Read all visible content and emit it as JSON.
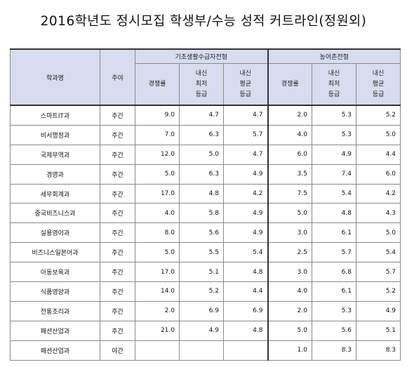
{
  "title": "2016학년도 정시모집 학생부/수능 성적 커트라인(정원외)",
  "header": {
    "dept": "학과명",
    "shift": "주야",
    "group_a": "기초생활수급자전형",
    "group_b": "농어촌전형",
    "sub": [
      "경쟁률",
      "내신\n최저\n등급",
      "내신\n평균\n등급",
      "경쟁률",
      "내신\n최저\n등급",
      "내신\n평균\n등급"
    ]
  },
  "rows": [
    {
      "dept": "스마트IT과",
      "shift": "주간",
      "v": [
        "9.0",
        "4.7",
        "4.7",
        "2.0",
        "5.3",
        "5.2"
      ]
    },
    {
      "dept": "비서행정과",
      "shift": "주간",
      "v": [
        "7.0",
        "6.3",
        "5.7",
        "4.0",
        "5.3",
        "5.0"
      ]
    },
    {
      "dept": "국제무역과",
      "shift": "주간",
      "v": [
        "12.0",
        "5.0",
        "4.7",
        "6.0",
        "4.9",
        "4.4"
      ]
    },
    {
      "dept": "경영과",
      "shift": "주간",
      "v": [
        "5.0",
        "6.3",
        "4.9",
        "3.5",
        "7.4",
        "6.0"
      ]
    },
    {
      "dept": "세무회계과",
      "shift": "주간",
      "v": [
        "17.0",
        "4.8",
        "4.2",
        "7.5",
        "5.4",
        "4.2"
      ]
    },
    {
      "dept": "중국비즈니스과",
      "shift": "주간",
      "v": [
        "4.0",
        "5.8",
        "4.9",
        "5.0",
        "4.8",
        "4.3"
      ]
    },
    {
      "dept": "실용영어과",
      "shift": "주간",
      "v": [
        "8.0",
        "5.6",
        "4.9",
        "3.0",
        "6.1",
        "5.0"
      ]
    },
    {
      "dept": "비즈니스일본어과",
      "shift": "주간",
      "v": [
        "5.0",
        "5.5",
        "5.4",
        "2.5",
        "5.7",
        "5.4"
      ]
    },
    {
      "dept": "아동보육과",
      "shift": "주간",
      "v": [
        "17.0",
        "5.1",
        "4.8",
        "3.0",
        "6.8",
        "5.7"
      ]
    },
    {
      "dept": "식품영양과",
      "shift": "주간",
      "v": [
        "14.0",
        "5.2",
        "4.4",
        "4.0",
        "6.1",
        "5.2"
      ]
    },
    {
      "dept": "전통조리과",
      "shift": "주간",
      "v": [
        "2.0",
        "6.9",
        "6.9",
        "2.0",
        "5.3",
        "4.9"
      ]
    },
    {
      "dept": "패션산업과",
      "shift": "주간",
      "v": [
        "21.0",
        "4.9",
        "4.8",
        "5.0",
        "5.6",
        "5.1"
      ]
    },
    {
      "dept": "패션산업과",
      "shift": "야간",
      "v": [
        "",
        "",
        "",
        "1.0",
        "8.3",
        "8.3"
      ]
    }
  ]
}
